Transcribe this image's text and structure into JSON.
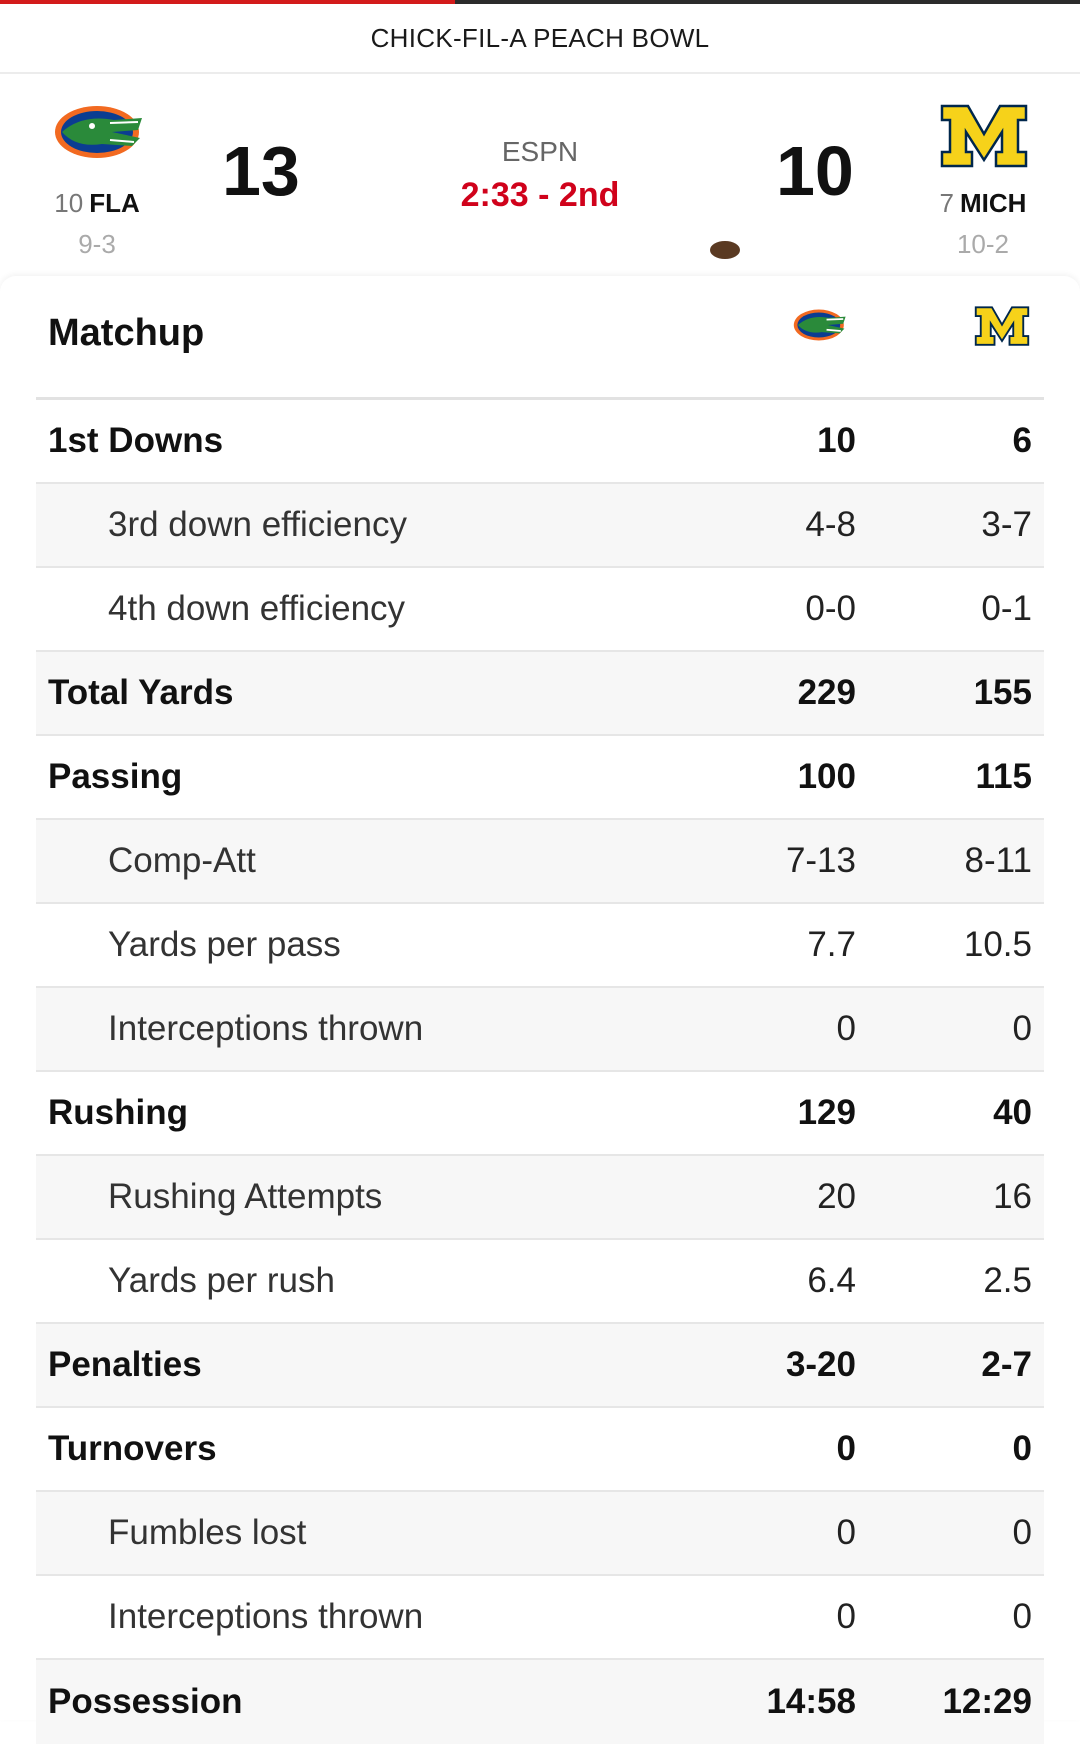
{
  "game": {
    "title": "CHICK-FIL-A PEACH BOWL",
    "network": "ESPN",
    "clock": "2:33 - 2nd"
  },
  "away": {
    "rank": "10",
    "abbr": "FLA",
    "record": "9-3",
    "score": "13",
    "logo": "gators-logo",
    "colors": {
      "orange": "#f26a21",
      "blue": "#0b3d91",
      "green": "#2a8a3a"
    }
  },
  "home": {
    "rank": "7",
    "abbr": "MICH",
    "record": "10-2",
    "score": "10",
    "logo": "block-m-logo",
    "has_possession": true,
    "colors": {
      "maize": "#f6d21a",
      "blue": "#00274c"
    }
  },
  "matchup": {
    "title": "Matchup",
    "rows": [
      {
        "label": "1st Downs",
        "fla": "10",
        "mich": "6",
        "type": "main"
      },
      {
        "label": "3rd down efficiency",
        "fla": "4-8",
        "mich": "3-7",
        "type": "sub"
      },
      {
        "label": "4th down efficiency",
        "fla": "0-0",
        "mich": "0-1",
        "type": "sub"
      },
      {
        "label": "Total Yards",
        "fla": "229",
        "mich": "155",
        "type": "main"
      },
      {
        "label": "Passing",
        "fla": "100",
        "mich": "115",
        "type": "main"
      },
      {
        "label": "Comp-Att",
        "fla": "7-13",
        "mich": "8-11",
        "type": "sub"
      },
      {
        "label": "Yards per pass",
        "fla": "7.7",
        "mich": "10.5",
        "type": "sub"
      },
      {
        "label": "Interceptions thrown",
        "fla": "0",
        "mich": "0",
        "type": "sub"
      },
      {
        "label": "Rushing",
        "fla": "129",
        "mich": "40",
        "type": "main"
      },
      {
        "label": "Rushing Attempts",
        "fla": "20",
        "mich": "16",
        "type": "sub"
      },
      {
        "label": "Yards per rush",
        "fla": "6.4",
        "mich": "2.5",
        "type": "sub"
      },
      {
        "label": "Penalties",
        "fla": "3-20",
        "mich": "2-7",
        "type": "main"
      },
      {
        "label": "Turnovers",
        "fla": "0",
        "mich": "0",
        "type": "main"
      },
      {
        "label": "Fumbles lost",
        "fla": "0",
        "mich": "0",
        "type": "sub"
      },
      {
        "label": "Interceptions thrown",
        "fla": "0",
        "mich": "0",
        "type": "sub"
      },
      {
        "label": "Possession",
        "fla": "14:58",
        "mich": "12:29",
        "type": "main"
      }
    ]
  },
  "colors": {
    "accent_red": "#d0021b",
    "row_shade": "#f7f7f7",
    "divider": "#e6e6e6"
  }
}
